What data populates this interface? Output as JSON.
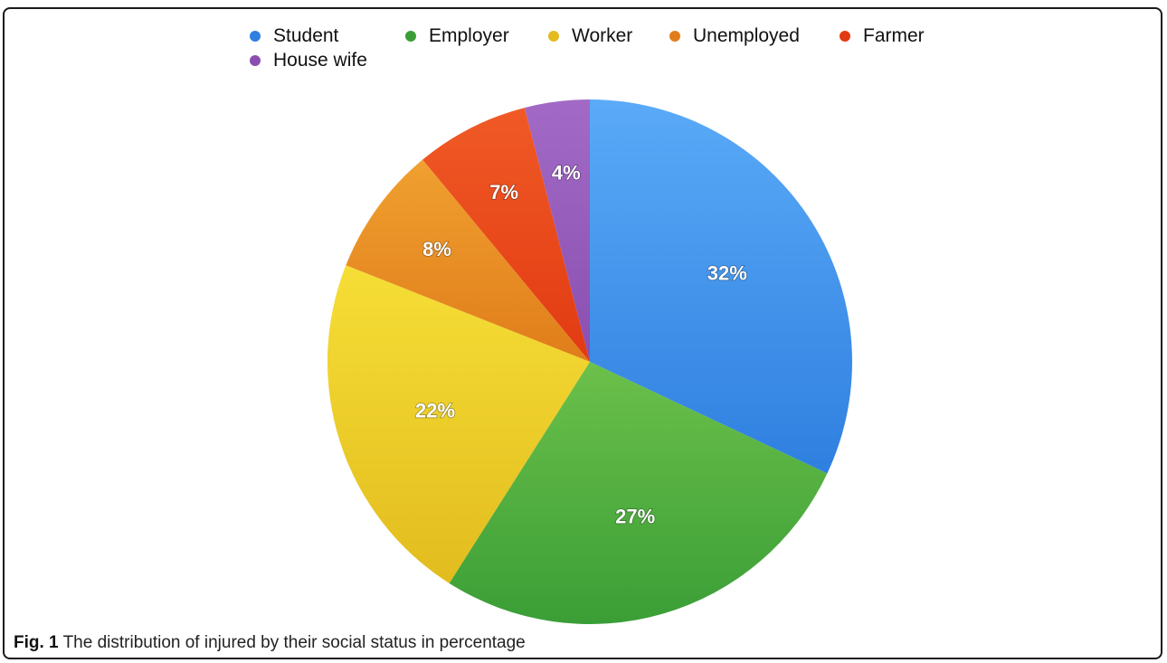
{
  "chart_data": {
    "type": "pie",
    "title": "",
    "slices": [
      {
        "label": "Student",
        "value": 32,
        "display": "32%",
        "color": "#2f7fe0",
        "highlight": "#5aaaf8"
      },
      {
        "label": "Employer",
        "value": 27,
        "display": "27%",
        "color": "#3a9e36",
        "highlight": "#6cc04a"
      },
      {
        "label": "Worker",
        "value": 22,
        "display": "22%",
        "color": "#e2bc1e",
        "highlight": "#f6de36"
      },
      {
        "label": "Unemployed",
        "value": 8,
        "display": "8%",
        "color": "#e07d1a",
        "highlight": "#f0a030"
      },
      {
        "label": "Farmer",
        "value": 7,
        "display": "7%",
        "color": "#e23a12",
        "highlight": "#f05a26"
      },
      {
        "label": "House wife",
        "value": 4,
        "display": "4%",
        "color": "#8a4fb0",
        "highlight": "#a26ac6"
      }
    ],
    "legend_placement": "top"
  },
  "caption": {
    "figure_label": "Fig. 1",
    "text": "The distribution of injured by their social status in percentage"
  }
}
